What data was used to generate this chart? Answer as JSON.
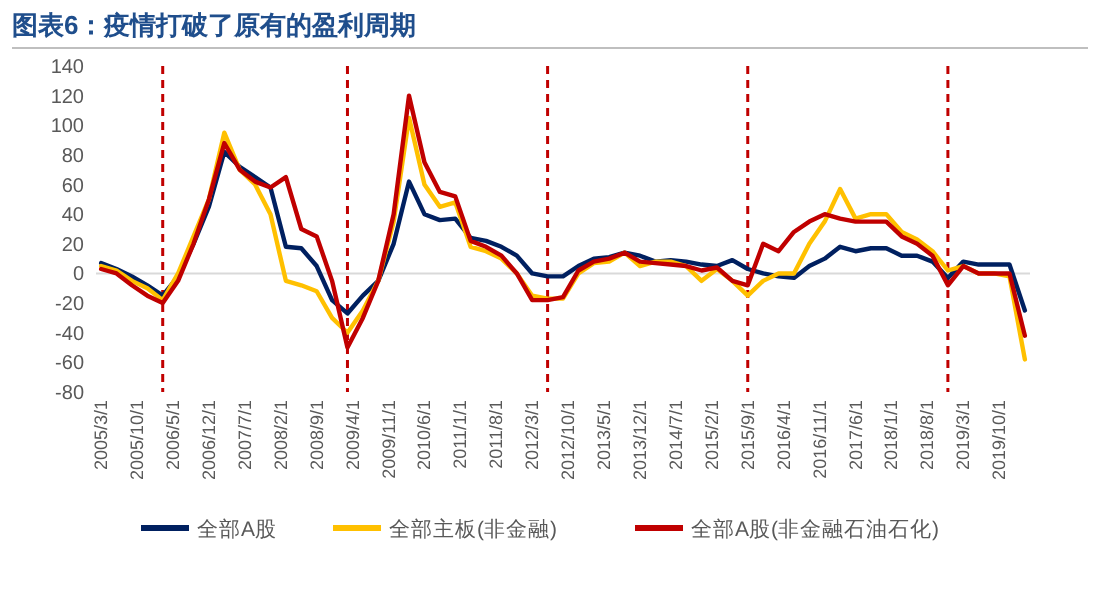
{
  "chart_data": {
    "type": "line",
    "title": "图表6：疫情打破了原有的盈利周期",
    "x": [
      "2005-03",
      "2005-06",
      "2005-09",
      "2005-12",
      "2006-03",
      "2006-06",
      "2006-09",
      "2006-12",
      "2007-03",
      "2007-06",
      "2007-09",
      "2007-12",
      "2008-03",
      "2008-06",
      "2008-09",
      "2008-12",
      "2009-03",
      "2009-06",
      "2009-09",
      "2009-12",
      "2010-03",
      "2010-06",
      "2010-09",
      "2010-12",
      "2011-03",
      "2011-06",
      "2011-09",
      "2011-12",
      "2012-03",
      "2012-06",
      "2012-09",
      "2012-12",
      "2013-03",
      "2013-06",
      "2013-09",
      "2013-12",
      "2014-03",
      "2014-06",
      "2014-09",
      "2014-12",
      "2015-03",
      "2015-06",
      "2015-09",
      "2015-12",
      "2016-03",
      "2016-06",
      "2016-09",
      "2016-12",
      "2017-03",
      "2017-06",
      "2017-09",
      "2017-12",
      "2018-03",
      "2018-06",
      "2018-09",
      "2018-12",
      "2019-03",
      "2019-06",
      "2019-09",
      "2019-12",
      "2020-03"
    ],
    "series": [
      {
        "name": "全部A股",
        "color": "#002060",
        "values": [
          7,
          3,
          -2,
          -8,
          -15,
          -2,
          20,
          45,
          82,
          72,
          65,
          58,
          18,
          17,
          5,
          -18,
          -27,
          -15,
          -5,
          20,
          62,
          40,
          36,
          37,
          24,
          22,
          18,
          12,
          0,
          -2,
          -2,
          5,
          10,
          11,
          14,
          12,
          8,
          9,
          8,
          6,
          5,
          9,
          3,
          0,
          -2,
          -3,
          5,
          10,
          18,
          15,
          17,
          17,
          12,
          12,
          8,
          -3,
          8,
          6,
          6,
          6,
          -25
        ]
      },
      {
        "name": "全部主板(非金融)",
        "color": "#ffc000",
        "values": [
          5,
          2,
          -5,
          -10,
          -18,
          0,
          25,
          50,
          95,
          70,
          60,
          40,
          -5,
          -8,
          -12,
          -30,
          -40,
          -25,
          -5,
          35,
          105,
          60,
          45,
          48,
          18,
          15,
          10,
          0,
          -15,
          -17,
          -17,
          0,
          7,
          8,
          14,
          5,
          8,
          8,
          5,
          -5,
          3,
          -5,
          -15,
          -5,
          0,
          0,
          20,
          35,
          57,
          37,
          40,
          40,
          28,
          23,
          15,
          2,
          5,
          0,
          0,
          -2,
          -58
        ]
      },
      {
        "name": "全部A股(非金融石油石化)",
        "color": "#c00000",
        "values": [
          3,
          0,
          -8,
          -15,
          -20,
          -5,
          20,
          50,
          88,
          70,
          62,
          58,
          65,
          30,
          25,
          -5,
          -50,
          -30,
          -5,
          40,
          120,
          75,
          55,
          52,
          22,
          18,
          12,
          0,
          -18,
          -18,
          -16,
          2,
          8,
          10,
          14,
          8,
          7,
          6,
          5,
          2,
          4,
          -5,
          -8,
          20,
          15,
          28,
          35,
          40,
          37,
          35,
          35,
          35,
          25,
          20,
          12,
          -8,
          5,
          0,
          0,
          0,
          -42
        ]
      }
    ],
    "xlim": [
      "2005-02",
      "2020-04"
    ],
    "xticks": [
      {
        "value": "2005-03",
        "label": "2005/3/1"
      },
      {
        "value": "2005-10",
        "label": "2005/10/1"
      },
      {
        "value": "2006-05",
        "label": "2006/5/1"
      },
      {
        "value": "2006-12",
        "label": "2006/12/1"
      },
      {
        "value": "2007-07",
        "label": "2007/7/1"
      },
      {
        "value": "2008-02",
        "label": "2008/2/1"
      },
      {
        "value": "2008-09",
        "label": "2008/9/1"
      },
      {
        "value": "2009-04",
        "label": "2009/4/1"
      },
      {
        "value": "2009-11",
        "label": "2009/11/1"
      },
      {
        "value": "2010-06",
        "label": "2010/6/1"
      },
      {
        "value": "2011-01",
        "label": "2011/1/1"
      },
      {
        "value": "2011-08",
        "label": "2011/8/1"
      },
      {
        "value": "2012-03",
        "label": "2012/3/1"
      },
      {
        "value": "2012-10",
        "label": "2012/10/1"
      },
      {
        "value": "2013-05",
        "label": "2013/5/1"
      },
      {
        "value": "2013-12",
        "label": "2013/12/1"
      },
      {
        "value": "2014-07",
        "label": "2014/7/1"
      },
      {
        "value": "2015-02",
        "label": "2015/2/1"
      },
      {
        "value": "2015-09",
        "label": "2015/9/1"
      },
      {
        "value": "2016-04",
        "label": "2016/4/1"
      },
      {
        "value": "2016-11",
        "label": "2016/11/1"
      },
      {
        "value": "2017-06",
        "label": "2017/6/1"
      },
      {
        "value": "2018-01",
        "label": "2018/1/1"
      },
      {
        "value": "2018-08",
        "label": "2018/8/1"
      },
      {
        "value": "2019-03",
        "label": "2019/3/1"
      },
      {
        "value": "2019-10",
        "label": "2019/10/1"
      }
    ],
    "ylim": [
      -80,
      140
    ],
    "yticks": [
      -80,
      -60,
      -40,
      -20,
      0,
      20,
      40,
      60,
      80,
      100,
      120,
      140
    ],
    "ref_lines": [
      {
        "axis": "x",
        "value": "2006-03",
        "color": "#c00000",
        "line_style": "dashed"
      },
      {
        "axis": "x",
        "value": "2009-03",
        "color": "#c00000",
        "line_style": "dashed"
      },
      {
        "axis": "x",
        "value": "2012-06",
        "color": "#c00000",
        "line_style": "dashed"
      },
      {
        "axis": "x",
        "value": "2015-09",
        "color": "#c00000",
        "line_style": "dashed"
      },
      {
        "axis": "x",
        "value": "2018-12",
        "color": "#c00000",
        "line_style": "dashed"
      }
    ],
    "grid": false,
    "legend": "bottom",
    "marker": "none",
    "line_style": "solid"
  }
}
